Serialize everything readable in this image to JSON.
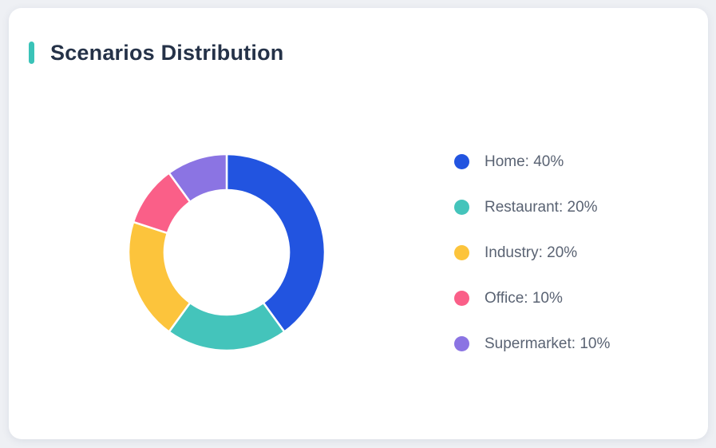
{
  "page": {
    "background": "#EEF0F4",
    "card_background": "#FFFFFF"
  },
  "card": {
    "title": "Scenarios Distribution",
    "accent_color": "#3AC3B8"
  },
  "chart_data": {
    "type": "pie",
    "subtype": "donut",
    "title": "Scenarios Distribution",
    "categories": [
      "Home",
      "Restaurant",
      "Industry",
      "Office",
      "Supermarket"
    ],
    "values": [
      40,
      20,
      20,
      10,
      10
    ],
    "unit": "%",
    "colors": [
      "#2254E0",
      "#44C4BB",
      "#FCC43C",
      "#FA5F88",
      "#8B74E3"
    ],
    "legend_labels": [
      "Home: 40%",
      "Restaurant: 20%",
      "Industry: 20%",
      "Office: 10%",
      "Supermarket: 10%"
    ],
    "legend_position": "right",
    "start_angle_deg": 0,
    "direction": "clockwise",
    "inner_radius_ratio": 0.63,
    "segment_border_color": "#FFFFFF",
    "segment_border_width": 2.5
  }
}
